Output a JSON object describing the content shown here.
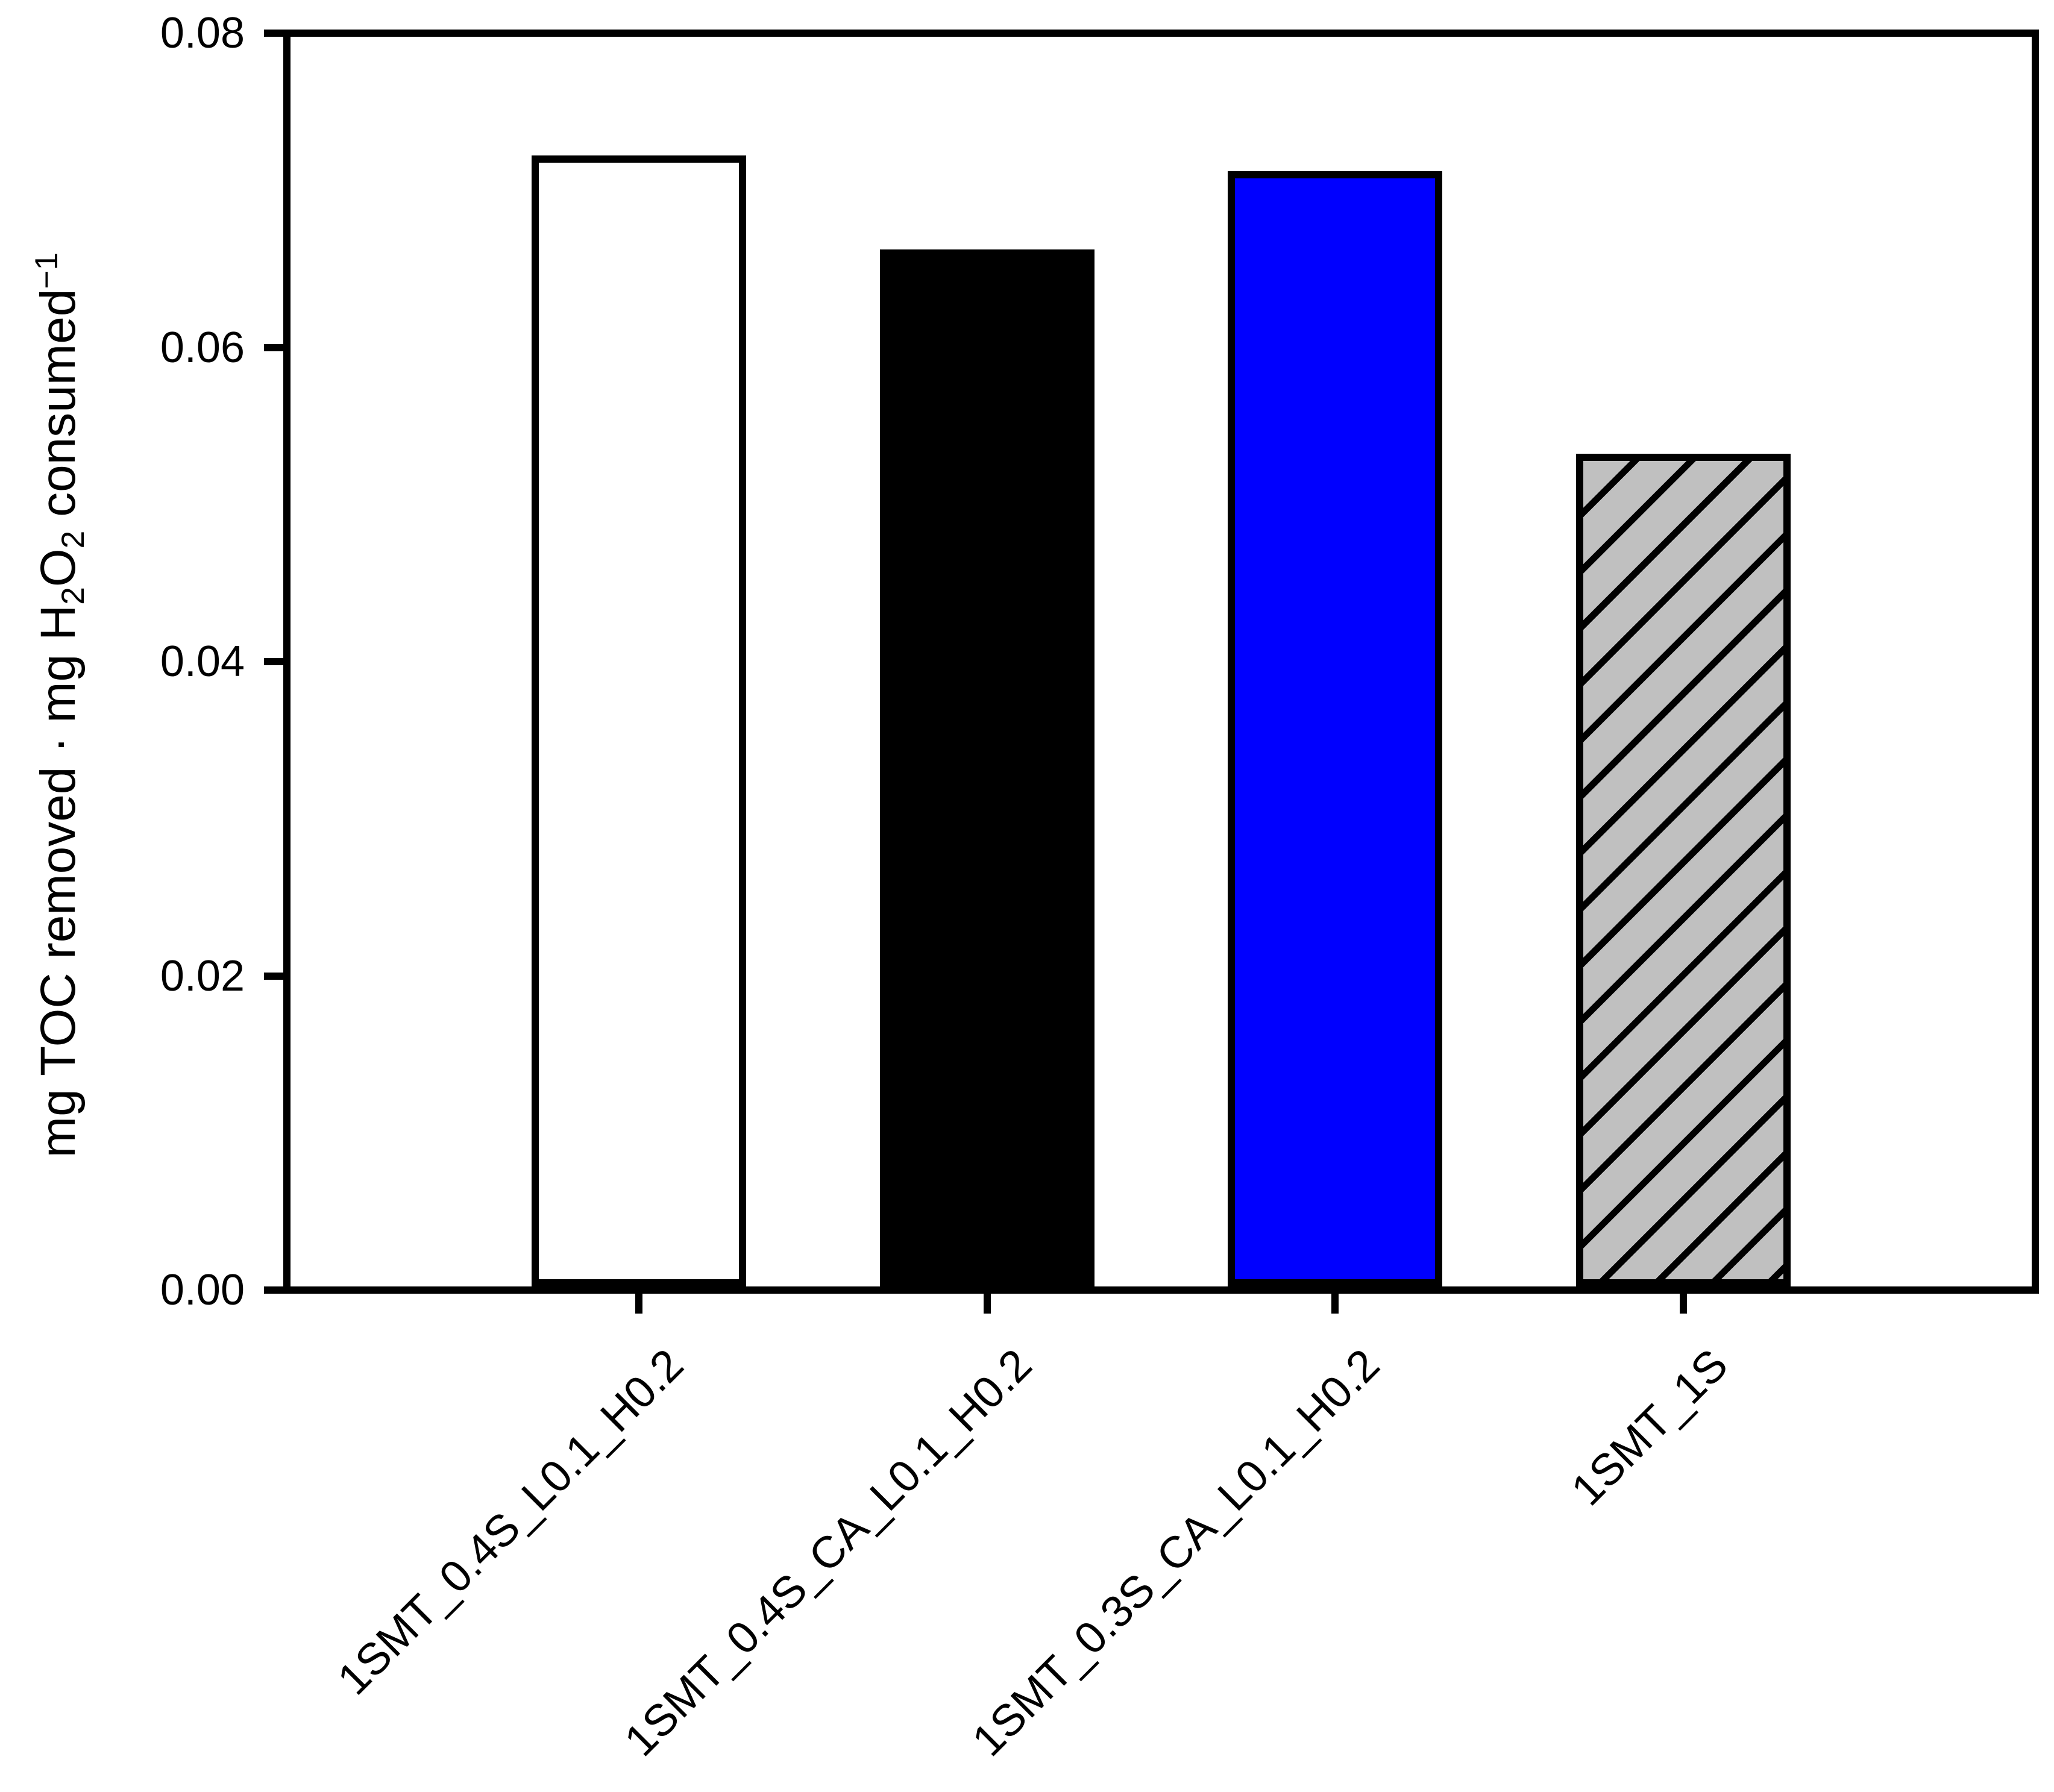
{
  "chart_data": {
    "type": "bar",
    "title": "",
    "xlabel": "",
    "ylabel": "mg TOC removed · mg H2O2 consumed^-1",
    "ylabel_parts": [
      {
        "text": "mg TOC removed · mg H",
        "style": "normal"
      },
      {
        "text": "2",
        "style": "sub"
      },
      {
        "text": "O",
        "style": "normal"
      },
      {
        "text": "2",
        "style": "sub"
      },
      {
        "text": " consumed",
        "style": "normal"
      },
      {
        "text": "−1",
        "style": "sup"
      }
    ],
    "categories": [
      "1SMT_0.4S_L0.1_H0.2",
      "1SMT_0.4S_CA_L0.1_H0.2",
      "1SMT_0.3S_CA_L0.1_H0.2",
      "1SMT_1S"
    ],
    "values": [
      0.072,
      0.066,
      0.071,
      0.053
    ],
    "bar_styles": [
      {
        "fill": "#ffffff",
        "hatch": false
      },
      {
        "fill": "#000000",
        "hatch": false
      },
      {
        "fill": "#0000ff",
        "hatch": false
      },
      {
        "fill": "#c0c0c0",
        "hatch": true
      }
    ],
    "edge_color": "#000000",
    "hatch_pattern": "/",
    "hatch_color": "#000000",
    "ylim": [
      0,
      0.08
    ],
    "yticks": [
      0.0,
      0.02,
      0.04,
      0.06,
      0.08
    ],
    "ytick_labels": [
      "0.00",
      "0.02",
      "0.04",
      "0.06",
      "0.08"
    ],
    "x_tick_rotation_deg": 45,
    "grid": false,
    "legend": null
  }
}
